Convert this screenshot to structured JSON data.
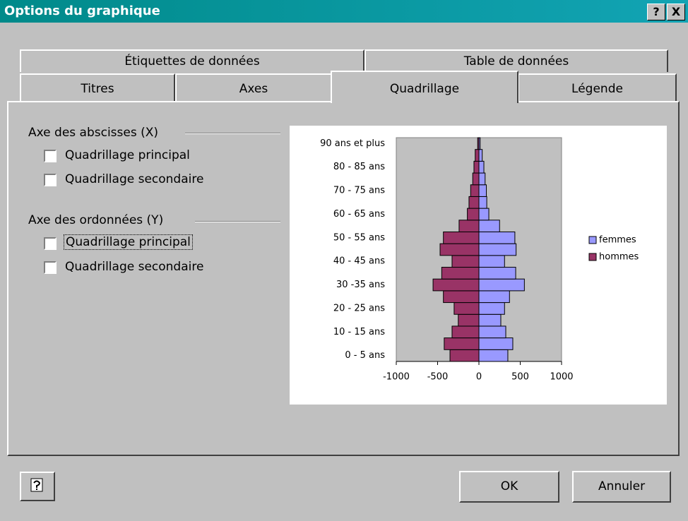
{
  "window": {
    "title": "Options du graphique",
    "title_buttons": [
      "?",
      "X"
    ]
  },
  "tabs": {
    "row1": [
      "Étiquettes de données",
      "Table de données"
    ],
    "row2": [
      "Titres",
      "Axes",
      "Quadrillage",
      "Légende"
    ]
  },
  "groups": [
    {
      "label": "Axe des abscisses (X)",
      "options": [
        "Quadrillage principal",
        "Quadrillage secondaire"
      ]
    },
    {
      "label": "Axe des ordonnées (Y)",
      "options": [
        "Quadrillage principal",
        "Quadrillage secondaire"
      ]
    }
  ],
  "buttons": {
    "ok": "OK",
    "cancel": "Annuler"
  },
  "chart_data": {
    "type": "bar",
    "orientation": "horizontal",
    "overlap": true,
    "categories": [
      "0 - 5 ans",
      null,
      "10 - 15 ans",
      null,
      "20 - 25 ans",
      null,
      "30 -35 ans",
      null,
      "40 - 45 ans",
      null,
      "50 - 55 ans",
      null,
      "60 - 65 ans",
      null,
      "70 - 75 ans",
      null,
      "80 - 85 ans",
      null,
      "90 ans et plus"
    ],
    "series": [
      {
        "name": "femmes",
        "color": "#9999ff",
        "values": [
          350,
          410,
          325,
          265,
          310,
          370,
          550,
          445,
          310,
          450,
          435,
          250,
          120,
          95,
          90,
          75,
          60,
          40,
          15
        ]
      },
      {
        "name": "hommes",
        "color": "#993366",
        "values": [
          -350,
          -420,
          -325,
          -250,
          -300,
          -430,
          -555,
          -450,
          -325,
          -470,
          -430,
          -240,
          -140,
          -120,
          -100,
          -75,
          -60,
          -45,
          -15
        ]
      }
    ],
    "xlim": [
      -1000,
      1000
    ],
    "xticks": [
      -1000,
      -500,
      0,
      500,
      1000
    ],
    "plot_background": "#c0c0c0",
    "legend": "right"
  }
}
